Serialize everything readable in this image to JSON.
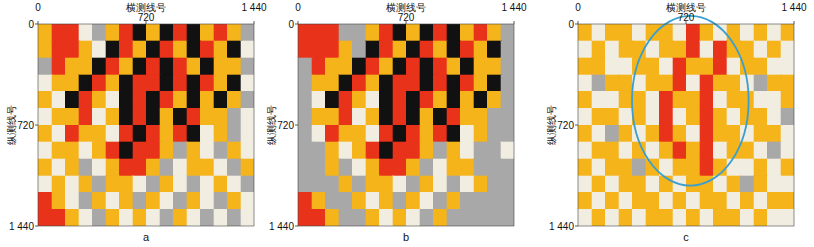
{
  "chart_data": [
    {
      "type": "heatmap",
      "title": "a",
      "xlabel": "横测线号",
      "ylabel": "纵测线号",
      "xlim": [
        0,
        1440
      ],
      "ylim": [
        0,
        1440
      ],
      "xticks": [
        0,
        720,
        {
          "value": 1440,
          "label": "1 440"
        }
      ],
      "yticks": [
        0,
        720,
        {
          "value": 1440,
          "label": "1 440"
        }
      ],
      "colors": [
        "#111111",
        "#a8a8a8",
        "#f1ede0",
        "#f4b41a",
        "#e8321a"
      ],
      "cells": [
        [
          3,
          4,
          4,
          2,
          1,
          3,
          4,
          0,
          3,
          0,
          4,
          0,
          3,
          4,
          3,
          1
        ],
        [
          3,
          4,
          4,
          3,
          2,
          0,
          4,
          3,
          0,
          4,
          3,
          0,
          4,
          3,
          0,
          2
        ],
        [
          1,
          4,
          3,
          3,
          0,
          4,
          3,
          0,
          4,
          0,
          4,
          3,
          0,
          3,
          3,
          1
        ],
        [
          2,
          3,
          3,
          0,
          4,
          3,
          0,
          4,
          4,
          0,
          4,
          0,
          4,
          3,
          0,
          2
        ],
        [
          3,
          2,
          0,
          4,
          3,
          2,
          0,
          4,
          0,
          4,
          3,
          0,
          3,
          0,
          3,
          1
        ],
        [
          2,
          3,
          3,
          4,
          2,
          3,
          0,
          4,
          0,
          3,
          0,
          4,
          3,
          3,
          1,
          2
        ],
        [
          3,
          2,
          4,
          3,
          3,
          2,
          4,
          0,
          4,
          3,
          4,
          0,
          2,
          3,
          1,
          2
        ],
        [
          2,
          3,
          3,
          2,
          3,
          4,
          0,
          4,
          4,
          3,
          1,
          3,
          2,
          1,
          3,
          2
        ],
        [
          3,
          2,
          3,
          1,
          2,
          3,
          4,
          4,
          3,
          1,
          2,
          3,
          3,
          2,
          1,
          3
        ],
        [
          2,
          3,
          2,
          3,
          1,
          3,
          3,
          2,
          1,
          3,
          2,
          1,
          2,
          3,
          2,
          1
        ],
        [
          4,
          3,
          2,
          1,
          3,
          2,
          3,
          1,
          3,
          2,
          1,
          3,
          2,
          1,
          3,
          2
        ],
        [
          4,
          4,
          3,
          2,
          1,
          3,
          2,
          3,
          2,
          1,
          3,
          2,
          1,
          2,
          1,
          2
        ]
      ]
    },
    {
      "type": "heatmap",
      "title": "b",
      "xlabel": "横测线号",
      "ylabel": "纵测线号",
      "xlim": [
        0,
        1440
      ],
      "ylim": [
        0,
        1440
      ],
      "xticks": [
        0,
        720,
        {
          "value": 1440,
          "label": "1 440"
        }
      ],
      "yticks": [
        0,
        720,
        {
          "value": 1440,
          "label": "1 440"
        }
      ],
      "colors": [
        "#111111",
        "#a8a8a8",
        "#f1ede0",
        "#f4b41a",
        "#e8321a"
      ],
      "cells": [
        [
          4,
          4,
          4,
          1,
          1,
          3,
          4,
          0,
          3,
          0,
          4,
          0,
          3,
          4,
          3,
          1
        ],
        [
          4,
          4,
          4,
          3,
          1,
          0,
          4,
          3,
          0,
          4,
          3,
          0,
          4,
          3,
          0,
          1
        ],
        [
          1,
          4,
          3,
          3,
          0,
          4,
          3,
          0,
          4,
          0,
          4,
          3,
          0,
          3,
          3,
          1
        ],
        [
          1,
          3,
          3,
          0,
          4,
          3,
          0,
          4,
          4,
          0,
          4,
          0,
          4,
          3,
          0,
          1
        ],
        [
          1,
          2,
          0,
          4,
          3,
          2,
          0,
          4,
          0,
          4,
          3,
          0,
          3,
          0,
          3,
          1
        ],
        [
          1,
          3,
          3,
          4,
          2,
          3,
          0,
          4,
          0,
          3,
          0,
          4,
          3,
          3,
          1,
          1
        ],
        [
          1,
          2,
          4,
          3,
          3,
          2,
          4,
          0,
          4,
          3,
          4,
          0,
          2,
          3,
          1,
          1
        ],
        [
          1,
          1,
          3,
          2,
          3,
          4,
          0,
          4,
          4,
          3,
          1,
          3,
          2,
          1,
          1,
          2
        ],
        [
          1,
          1,
          3,
          1,
          2,
          3,
          4,
          4,
          3,
          1,
          2,
          3,
          3,
          1,
          1,
          1
        ],
        [
          1,
          1,
          1,
          3,
          1,
          3,
          3,
          2,
          1,
          3,
          2,
          1,
          2,
          3,
          1,
          1
        ],
        [
          4,
          3,
          1,
          1,
          3,
          2,
          3,
          1,
          3,
          2,
          1,
          3,
          1,
          1,
          1,
          1
        ],
        [
          4,
          4,
          3,
          1,
          1,
          3,
          2,
          3,
          2,
          1,
          3,
          1,
          1,
          1,
          1,
          1
        ]
      ]
    },
    {
      "type": "heatmap",
      "title": "c",
      "xlabel": "横测线号",
      "ylabel": "纵测线号",
      "xlim": [
        0,
        1440
      ],
      "ylim": [
        0,
        1440
      ],
      "xticks": [
        0,
        720,
        {
          "value": 1440,
          "label": "1 440"
        }
      ],
      "yticks": [
        0,
        720,
        {
          "value": 1440,
          "label": "1 440"
        }
      ],
      "colors": [
        "#111111",
        "#a8a8a8",
        "#f1ede0",
        "#f4b41a",
        "#e8321a"
      ],
      "cells": [
        [
          3,
          2,
          3,
          3,
          2,
          3,
          3,
          2,
          4,
          3,
          2,
          3,
          2,
          3,
          2,
          3
        ],
        [
          2,
          3,
          2,
          3,
          3,
          2,
          3,
          3,
          4,
          2,
          4,
          3,
          3,
          2,
          3,
          2
        ],
        [
          3,
          3,
          2,
          2,
          3,
          3,
          2,
          4,
          3,
          3,
          4,
          2,
          3,
          3,
          2,
          2
        ],
        [
          2,
          1,
          3,
          3,
          2,
          3,
          3,
          4,
          2,
          4,
          3,
          3,
          2,
          1,
          3,
          3
        ],
        [
          3,
          2,
          2,
          3,
          3,
          2,
          4,
          3,
          3,
          4,
          2,
          3,
          3,
          2,
          2,
          3
        ],
        [
          2,
          3,
          3,
          2,
          3,
          2,
          4,
          2,
          3,
          4,
          3,
          2,
          3,
          3,
          2,
          1
        ],
        [
          3,
          2,
          1,
          3,
          2,
          3,
          4,
          3,
          2,
          4,
          3,
          3,
          2,
          3,
          3,
          2
        ],
        [
          2,
          3,
          3,
          2,
          3,
          2,
          3,
          4,
          3,
          4,
          2,
          3,
          3,
          2,
          1,
          2
        ],
        [
          3,
          2,
          3,
          3,
          1,
          3,
          2,
          3,
          3,
          4,
          3,
          2,
          2,
          3,
          2,
          3
        ],
        [
          2,
          3,
          2,
          3,
          3,
          2,
          3,
          2,
          3,
          3,
          2,
          3,
          1,
          3,
          2,
          2
        ],
        [
          3,
          2,
          3,
          2,
          3,
          3,
          2,
          3,
          2,
          3,
          3,
          2,
          3,
          2,
          3,
          3
        ],
        [
          2,
          3,
          2,
          3,
          2,
          3,
          3,
          2,
          3,
          2,
          3,
          3,
          2,
          3,
          2,
          2
        ]
      ]
    }
  ]
}
